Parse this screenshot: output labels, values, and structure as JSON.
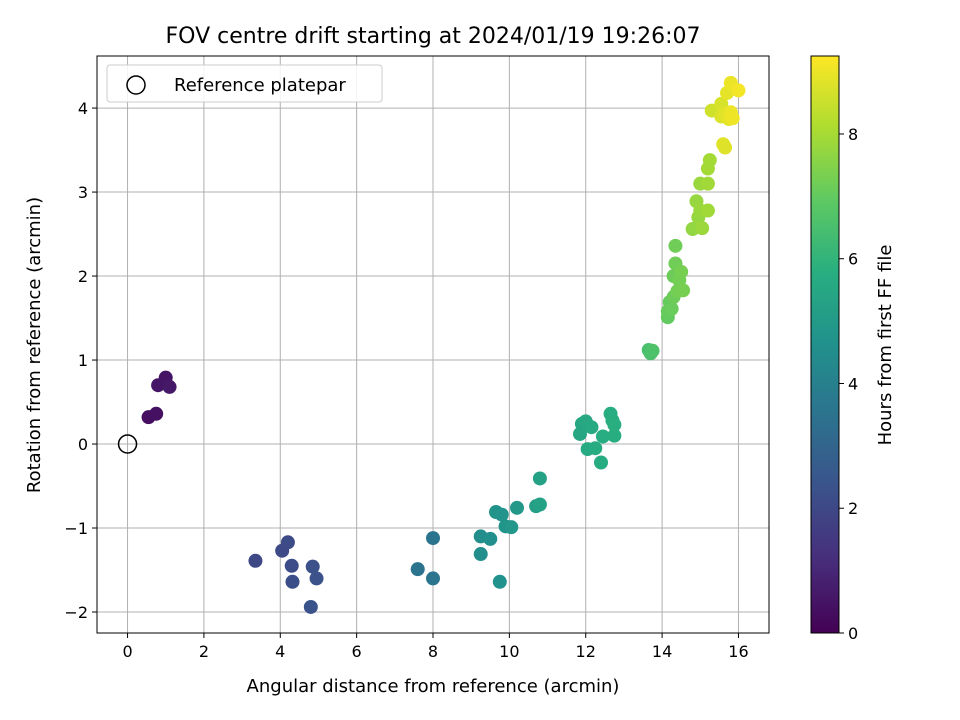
{
  "chart_data": {
    "type": "scatter",
    "title": "FOV centre drift starting at 2024/01/19 19:26:07",
    "xlabel": "Angular distance from reference (arcmin)",
    "ylabel": "Rotation from reference (arcmin)",
    "xlim": [
      -0.8,
      16.8
    ],
    "ylim": [
      -2.25,
      4.62
    ],
    "x_ticks": [
      0,
      2,
      4,
      6,
      8,
      10,
      12,
      14,
      16
    ],
    "y_ticks": [
      -2,
      -1,
      0,
      1,
      2,
      3,
      4
    ],
    "x_tick_labels": [
      "0",
      "2",
      "4",
      "6",
      "8",
      "10",
      "12",
      "14",
      "16"
    ],
    "y_tick_labels": [
      "−2",
      "−1",
      "0",
      "1",
      "2",
      "3",
      "4"
    ],
    "grid": true,
    "legend": {
      "position": "top-left",
      "entries": [
        "Reference platepar"
      ]
    },
    "reference_point": {
      "x": 0,
      "y": 0
    },
    "colorbar": {
      "label": "Hours from first FF file",
      "range": [
        0,
        9.25
      ],
      "ticks": [
        0,
        2,
        4,
        6,
        8
      ],
      "tick_labels": [
        "0",
        "2",
        "4",
        "6",
        "8"
      ],
      "colormap": "viridis"
    },
    "points": [
      [
        0.55,
        0.32,
        0.35
      ],
      [
        0.75,
        0.36,
        0.4
      ],
      [
        1.0,
        0.79,
        0.5
      ],
      [
        0.8,
        0.7,
        0.55
      ],
      [
        1.1,
        0.68,
        0.6
      ],
      [
        3.35,
        -1.39,
        2.0
      ],
      [
        4.05,
        -1.27,
        2.05
      ],
      [
        4.2,
        -1.17,
        2.1
      ],
      [
        4.3,
        -1.45,
        2.15
      ],
      [
        4.32,
        -1.64,
        2.2
      ],
      [
        4.85,
        -1.46,
        2.25
      ],
      [
        4.95,
        -1.6,
        2.3
      ],
      [
        4.8,
        -1.94,
        2.35
      ],
      [
        7.6,
        -1.49,
        3.5
      ],
      [
        8.0,
        -1.12,
        3.55
      ],
      [
        8.0,
        -1.6,
        3.6
      ],
      [
        9.25,
        -1.1,
        4.5
      ],
      [
        9.25,
        -1.31,
        4.55
      ],
      [
        9.5,
        -1.13,
        4.6
      ],
      [
        9.65,
        -0.81,
        4.7
      ],
      [
        9.8,
        -0.84,
        4.75
      ],
      [
        9.9,
        -0.98,
        4.8
      ],
      [
        10.05,
        -0.99,
        4.85
      ],
      [
        10.2,
        -0.76,
        4.9
      ],
      [
        9.75,
        -1.64,
        4.65
      ],
      [
        10.7,
        -0.74,
        5.2
      ],
      [
        10.8,
        -0.72,
        5.25
      ],
      [
        10.8,
        -0.41,
        5.3
      ],
      [
        11.85,
        0.12,
        5.45
      ],
      [
        11.9,
        0.24,
        5.5
      ],
      [
        12.0,
        0.27,
        5.55
      ],
      [
        12.05,
        -0.06,
        5.6
      ],
      [
        12.15,
        0.2,
        5.6
      ],
      [
        12.25,
        -0.05,
        5.65
      ],
      [
        12.4,
        -0.22,
        5.65
      ],
      [
        12.45,
        0.09,
        5.7
      ],
      [
        12.65,
        0.36,
        5.7
      ],
      [
        12.7,
        0.28,
        5.75
      ],
      [
        12.75,
        0.1,
        5.75
      ],
      [
        12.75,
        0.23,
        5.8
      ],
      [
        13.65,
        1.12,
        6.5
      ],
      [
        13.7,
        1.08,
        6.55
      ],
      [
        13.75,
        1.11,
        6.6
      ],
      [
        14.15,
        1.51,
        7.0
      ],
      [
        14.15,
        1.58,
        7.05
      ],
      [
        14.2,
        1.69,
        7.05
      ],
      [
        14.25,
        1.61,
        7.1
      ],
      [
        14.3,
        1.75,
        7.15
      ],
      [
        14.3,
        2.0,
        7.15
      ],
      [
        14.35,
        2.36,
        7.2
      ],
      [
        14.35,
        2.15,
        7.2
      ],
      [
        14.4,
        1.82,
        7.25
      ],
      [
        14.45,
        1.95,
        7.25
      ],
      [
        14.5,
        2.05,
        7.3
      ],
      [
        14.55,
        1.83,
        7.3
      ],
      [
        14.8,
        2.56,
        7.7
      ],
      [
        14.9,
        2.89,
        7.75
      ],
      [
        14.95,
        2.7,
        7.75
      ],
      [
        15.0,
        3.1,
        7.8
      ],
      [
        15.0,
        2.78,
        7.8
      ],
      [
        15.05,
        2.57,
        7.85
      ],
      [
        15.2,
        2.78,
        7.9
      ],
      [
        15.2,
        3.1,
        7.9
      ],
      [
        15.2,
        3.28,
        7.95
      ],
      [
        15.25,
        3.38,
        7.95
      ],
      [
        15.3,
        3.97,
        8.6
      ],
      [
        15.55,
        4.05,
        8.7
      ],
      [
        15.55,
        3.9,
        8.75
      ],
      [
        15.6,
        3.57,
        8.8
      ],
      [
        15.65,
        3.53,
        8.8
      ],
      [
        15.65,
        3.93,
        8.85
      ],
      [
        15.7,
        4.18,
        8.9
      ],
      [
        15.75,
        3.87,
        8.9
      ],
      [
        15.8,
        4.3,
        9.0
      ],
      [
        15.8,
        3.95,
        9.0
      ],
      [
        15.85,
        3.88,
        9.05
      ],
      [
        16.0,
        4.21,
        9.1
      ]
    ]
  }
}
